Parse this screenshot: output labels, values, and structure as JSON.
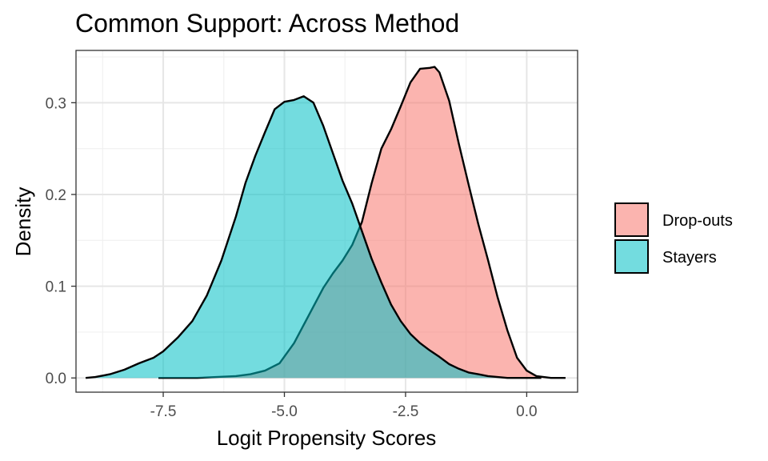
{
  "chart_data": {
    "type": "area",
    "title": "Common Support: Across Method",
    "xlabel": "Logit Propensity Scores",
    "ylabel": "Density",
    "xlim": [
      -9.3,
      1.05
    ],
    "ylim": [
      -0.0155,
      0.357
    ],
    "x_ticks": [
      -7.5,
      -5.0,
      -2.5,
      0.0
    ],
    "x_tick_labels": [
      "-7.5",
      "-5.0",
      "-2.5",
      "0.0"
    ],
    "y_ticks": [
      0.0,
      0.1,
      0.2,
      0.3
    ],
    "y_tick_labels": [
      "0.0",
      "0.1",
      "0.2",
      "0.3"
    ],
    "grid": true,
    "legend_position": "right",
    "series": [
      {
        "name": "Drop-outs",
        "color": "#F8766D",
        "x": [
          -7.6,
          -6.8,
          -6.0,
          -5.7,
          -5.4,
          -5.1,
          -4.8,
          -4.5,
          -4.2,
          -4.0,
          -3.8,
          -3.6,
          -3.4,
          -3.2,
          -3.0,
          -2.8,
          -2.6,
          -2.4,
          -2.2,
          -2.0,
          -1.9,
          -1.8,
          -1.6,
          -1.4,
          -1.2,
          -1.0,
          -0.8,
          -0.6,
          -0.4,
          -0.2,
          0.0,
          0.2,
          0.5,
          0.8
        ],
        "values": [
          0.0,
          0.0,
          0.002,
          0.004,
          0.008,
          0.016,
          0.038,
          0.068,
          0.098,
          0.114,
          0.128,
          0.145,
          0.17,
          0.212,
          0.25,
          0.271,
          0.296,
          0.322,
          0.337,
          0.338,
          0.339,
          0.333,
          0.302,
          0.255,
          0.211,
          0.168,
          0.129,
          0.088,
          0.052,
          0.022,
          0.008,
          0.002,
          0.0,
          0.0
        ]
      },
      {
        "name": "Stayers",
        "color": "#00BFC4",
        "x": [
          -9.1,
          -8.9,
          -8.6,
          -8.3,
          -8.0,
          -7.7,
          -7.5,
          -7.2,
          -6.9,
          -6.6,
          -6.3,
          -6.0,
          -5.8,
          -5.6,
          -5.4,
          -5.2,
          -5.0,
          -4.8,
          -4.6,
          -4.4,
          -4.2,
          -4.0,
          -3.8,
          -3.6,
          -3.4,
          -3.2,
          -3.0,
          -2.8,
          -2.6,
          -2.4,
          -2.2,
          -2.0,
          -1.8,
          -1.6,
          -1.4,
          -1.2,
          -1.0,
          -0.8,
          -0.6,
          -0.4,
          -0.2,
          0.0,
          0.3
        ],
        "values": [
          0.0,
          0.001,
          0.004,
          0.009,
          0.016,
          0.022,
          0.029,
          0.044,
          0.062,
          0.09,
          0.128,
          0.176,
          0.213,
          0.242,
          0.268,
          0.293,
          0.301,
          0.303,
          0.307,
          0.3,
          0.275,
          0.245,
          0.215,
          0.19,
          0.16,
          0.13,
          0.104,
          0.08,
          0.062,
          0.048,
          0.038,
          0.03,
          0.023,
          0.015,
          0.01,
          0.006,
          0.004,
          0.002,
          0.001,
          0.0,
          0.0,
          0.0,
          0.0
        ]
      }
    ]
  }
}
